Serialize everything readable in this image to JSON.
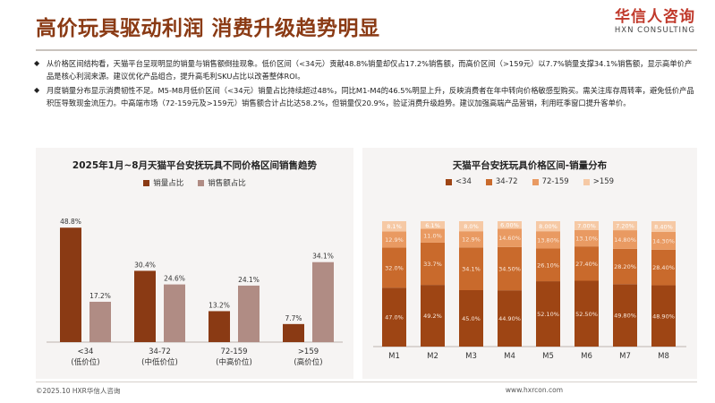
{
  "header": {
    "title": "高价玩具驱动利润 消费升级趋势明显",
    "logo_cn": "华信人咨询",
    "logo_en": "HXN CONSULTING"
  },
  "bullets": [
    "从价格区间结构看，天猫平台呈现明显的销量与销售额倒挂现象。低价区间（<34元）贡献48.8%销量却仅占17.2%销售额，而高价区间（>159元）以7.7%销量支撑34.1%销售额，显示高单价产品是核心利润来源。建议优化产品组合，提升高毛利SKU占比以改善整体ROI。",
    "月度销量分布显示消费韧性不足。M5-M8月低价区间（<34元）销量占比持续超过48%，同比M1-M4的46.5%明显上升，反映消费者在年中转向价格敏感型购买。需关注库存周转率，避免低价产品积压导致现金流压力。中高端市场（72-159元及>159元）销售额合计占比达58.2%，但销量仅20.9%，验证消费升级趋势。建议加强高端产品营销，利用旺季窗口提升客单价。"
  ],
  "footer": {
    "copyright": "©2025.10 HXR华信人咨询",
    "website": "www.hxrcon.com"
  },
  "colors": {
    "title": "#8a3a14",
    "sales_volume": "#8a3a14",
    "sales_amount": "#b08c84",
    "seg_lt34": "#9e4514",
    "seg_34_72": "#c96a2c",
    "seg_72_159": "#e99a62",
    "seg_gt159": "#f6c9a5"
  },
  "chart_data": [
    {
      "type": "bar",
      "title": "2025年1月~8月天猫平台安抚玩具不同价格区间销售趋势",
      "categories": [
        "<34",
        "34-72",
        "72-159",
        ">159"
      ],
      "category_sublabels": [
        "(低价位)",
        "(中低价位)",
        "(中高价位)",
        "(高价位)"
      ],
      "series": [
        {
          "name": "销量占比",
          "values": [
            48.8,
            30.4,
            13.2,
            7.7
          ],
          "labels": [
            "48.8%",
            "30.4%",
            "13.2%",
            "7.7%"
          ]
        },
        {
          "name": "销售额占比",
          "values": [
            17.2,
            24.6,
            24.1,
            34.1
          ],
          "labels": [
            "17.2%",
            "24.6%",
            "24.1%",
            "34.1%"
          ]
        }
      ],
      "ylim": [
        0,
        55
      ],
      "grid": false,
      "legend": "top"
    },
    {
      "type": "bar",
      "stacked": true,
      "title": "天猫平台安抚玩具价格区间-销量分布",
      "categories": [
        "M1",
        "M2",
        "M3",
        "M4",
        "M5",
        "M6",
        "M7",
        "M8"
      ],
      "series": [
        {
          "name": "<34",
          "values": [
            47.0,
            49.2,
            45.0,
            44.9,
            52.1,
            52.5,
            49.8,
            48.9
          ],
          "labels": [
            "47.0%",
            "49.2%",
            "45.0%",
            "44.90%",
            "52.10%",
            "52.50%",
            "49.80%",
            "48.90%"
          ]
        },
        {
          "name": "34-72",
          "values": [
            32.0,
            33.7,
            34.1,
            34.5,
            26.1,
            27.4,
            28.2,
            28.4
          ],
          "labels": [
            "32.0%",
            "33.7%",
            "34.1%",
            "34.50%",
            "26.10%",
            "27.40%",
            "28.20%",
            "28.40%"
          ]
        },
        {
          "name": "72-159",
          "values": [
            12.9,
            11.0,
            12.9,
            14.6,
            13.8,
            13.1,
            14.8,
            14.3
          ],
          "labels": [
            "12.9%",
            "11.0%",
            "12.9%",
            "14.60%",
            "13.80%",
            "13.10%",
            "14.80%",
            "14.30%"
          ]
        },
        {
          "name": ">159",
          "values": [
            8.1,
            6.1,
            8.0,
            6.0,
            8.0,
            7.0,
            7.2,
            8.4
          ],
          "labels": [
            "8.1%",
            "6.1%",
            "8.0%",
            "6.00%",
            "8.00%",
            "7.00%",
            "7.20%",
            "8.40%"
          ]
        }
      ],
      "ylim": [
        0,
        100
      ],
      "grid": false,
      "legend": "top"
    }
  ]
}
